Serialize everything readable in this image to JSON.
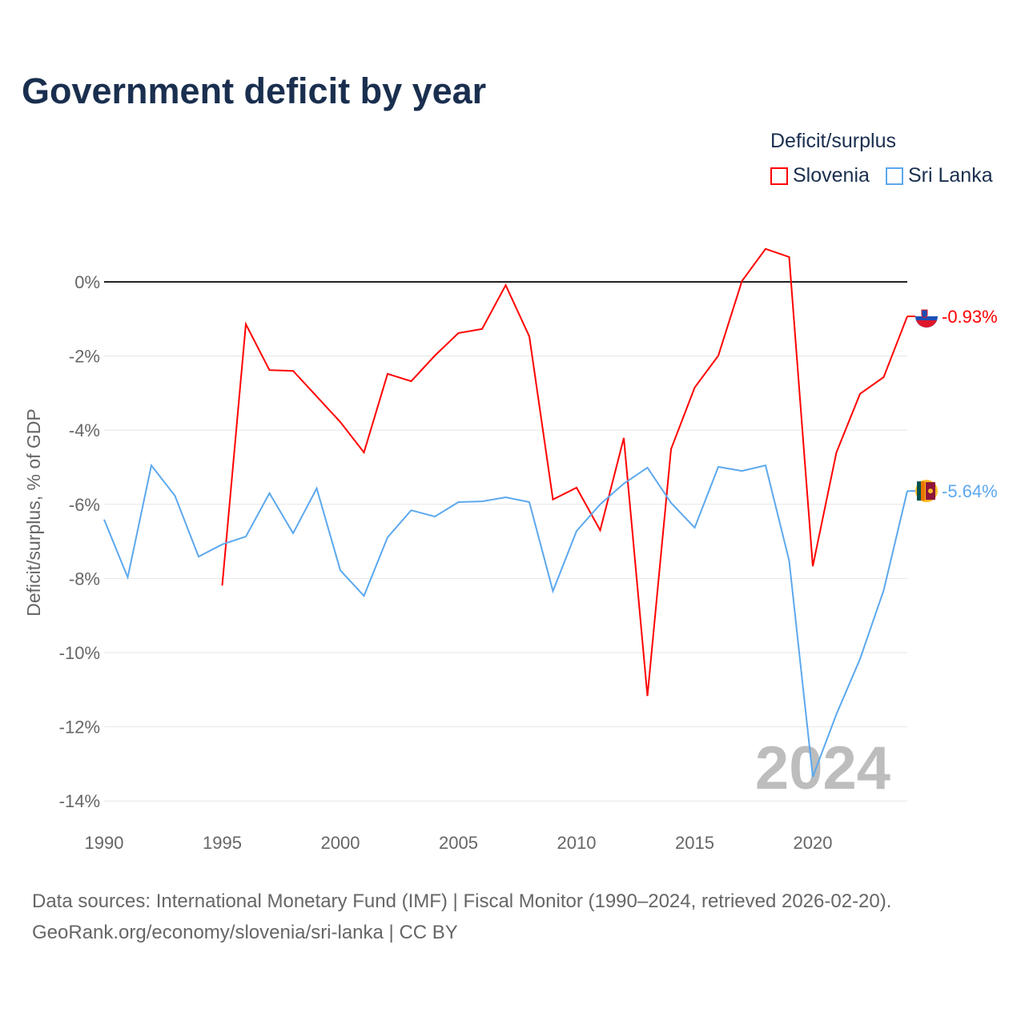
{
  "title": "Government deficit by year",
  "legend": {
    "title": "Deficit/surplus",
    "items": [
      {
        "name": "Slovenia",
        "color": "#ff0000"
      },
      {
        "name": "Sri Lanka",
        "color": "#5ca8ee"
      }
    ]
  },
  "year_watermark": "2024",
  "footer": {
    "line1": "Data sources: International Monetary Fund (IMF) | Fiscal Monitor (1990–2024, retrieved 2026-02-20).",
    "line2": "GeoRank.org/economy/slovenia/sri-lanka | CC BY"
  },
  "chart_data": {
    "type": "line",
    "title": "Government deficit by year",
    "xlabel": "",
    "ylabel": "Deficit/surplus, % of GDP",
    "xlim": [
      1990,
      2024
    ],
    "ylim": [
      -14,
      1
    ],
    "x_ticks": [
      1990,
      1995,
      2000,
      2005,
      2010,
      2015,
      2020
    ],
    "x_tick_labels": [
      "1990",
      "1995",
      "2000",
      "2005",
      "2010",
      "2015",
      "2020"
    ],
    "y_ticks": [
      0,
      -2,
      -4,
      -6,
      -8,
      -10,
      -12,
      -14
    ],
    "y_tick_labels": [
      "0%",
      "-2%",
      "-4%",
      "-6%",
      "-8%",
      "-10%",
      "-12%",
      "-14%"
    ],
    "grid": true,
    "legend_position": "top-right",
    "series": [
      {
        "name": "Slovenia",
        "color": "#ff0000",
        "end_label": "-0.93%",
        "x": [
          1995,
          1996,
          1997,
          1998,
          1999,
          2000,
          2001,
          2002,
          2003,
          2004,
          2005,
          2006,
          2007,
          2008,
          2009,
          2010,
          2011,
          2012,
          2013,
          2014,
          2015,
          2016,
          2017,
          2018,
          2019,
          2020,
          2021,
          2022,
          2023,
          2024
        ],
        "values": [
          -8.19,
          -1.14,
          -2.38,
          -2.4,
          -3.09,
          -3.78,
          -4.6,
          -2.48,
          -2.68,
          -1.99,
          -1.38,
          -1.27,
          -0.09,
          -1.47,
          -5.87,
          -5.55,
          -6.7,
          -4.21,
          -11.17,
          -4.51,
          -2.85,
          -1.99,
          0.02,
          0.89,
          0.67,
          -7.67,
          -4.6,
          -3.02,
          -2.57,
          -0.93
        ]
      },
      {
        "name": "Sri Lanka",
        "color": "#5ca8ee",
        "end_label": "-5.64%",
        "x": [
          1990,
          1991,
          1992,
          1993,
          1994,
          1995,
          1996,
          1997,
          1998,
          1999,
          2000,
          2001,
          2002,
          2003,
          2004,
          2005,
          2006,
          2007,
          2008,
          2009,
          2010,
          2011,
          2012,
          2013,
          2014,
          2015,
          2016,
          2017,
          2018,
          2019,
          2020,
          2021,
          2022,
          2023,
          2024
        ],
        "values": [
          -6.41,
          -7.97,
          -4.95,
          -5.77,
          -7.41,
          -7.08,
          -6.87,
          -5.7,
          -6.78,
          -5.57,
          -7.78,
          -8.47,
          -6.89,
          -6.16,
          -6.33,
          -5.94,
          -5.92,
          -5.81,
          -5.94,
          -8.34,
          -6.72,
          -6.0,
          -5.44,
          -5.01,
          -5.96,
          -6.63,
          -4.99,
          -5.1,
          -4.95,
          -7.52,
          -13.35,
          -11.66,
          -10.17,
          -8.32,
          -5.64
        ]
      }
    ]
  }
}
